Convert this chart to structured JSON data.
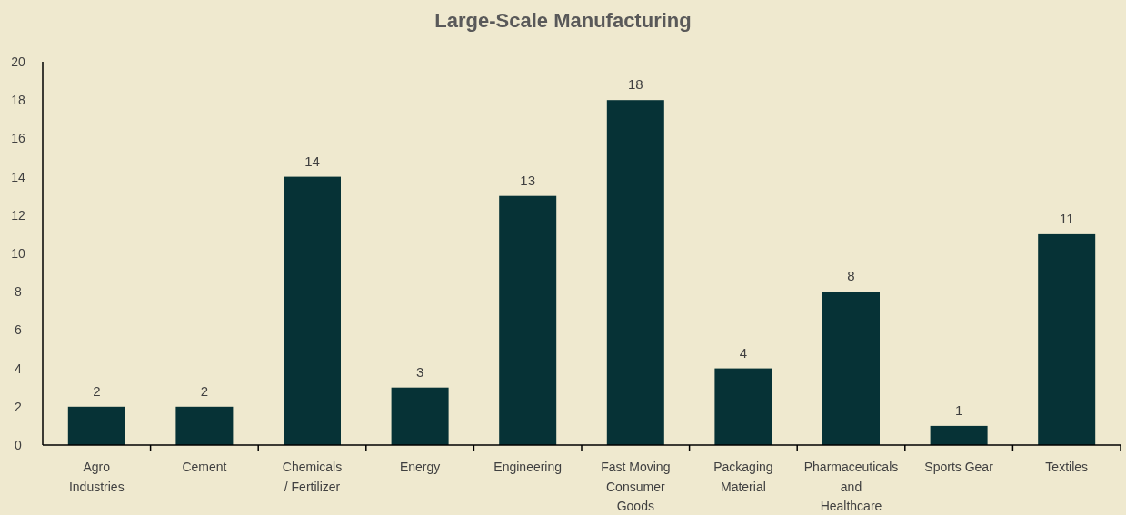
{
  "chart_data": {
    "type": "bar",
    "title": "Large-Scale Manufacturing",
    "categories": [
      "Agro Industries",
      "Cement",
      "Chemicals / Fertilizer",
      "Energy",
      "Engineering",
      "Fast Moving Consumer Goods",
      "Packaging Material",
      "Pharmaceuticals and Healthcare",
      "Sports Gear",
      "Textiles"
    ],
    "values": [
      2,
      2,
      14,
      3,
      13,
      18,
      4,
      8,
      1,
      11
    ],
    "color": "#063236",
    "ylim": [
      0,
      20
    ],
    "yticks": [
      0,
      2,
      4,
      6,
      8,
      10,
      12,
      14,
      16,
      18,
      20
    ],
    "data_labels": true,
    "grid": false
  }
}
